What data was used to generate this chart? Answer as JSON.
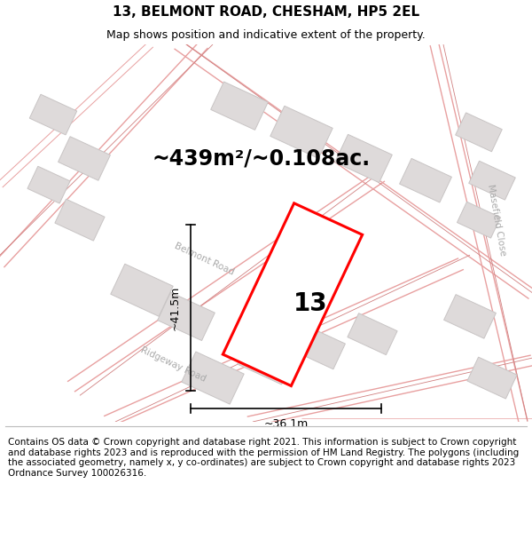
{
  "title": "13, BELMONT ROAD, CHESHAM, HP5 2EL",
  "subtitle": "Map shows position and indicative extent of the property.",
  "footer": "Contains OS data © Crown copyright and database right 2021. This information is subject to Crown copyright and database rights 2023 and is reproduced with the permission of HM Land Registry. The polygons (including the associated geometry, namely x, y co-ordinates) are subject to Crown copyright and database rights 2023 Ordnance Survey 100026316.",
  "area_label": "~439m²/~0.108ac.",
  "number_label": "13",
  "dim_width": "~36.1m",
  "dim_height": "~41.5m",
  "road_label_belmont": "Belmont Road",
  "road_label_ridgeway": "Ridgeway Road",
  "road_label_masefield": "Masefield Close",
  "map_bg": "#eeecec",
  "building_fill": "#dedada",
  "building_edge": "#c8c4c4",
  "road_line_color": "#e8a0a0",
  "road_line_color2": "#d08080",
  "plot_color": "#ff0000",
  "title_fontsize": 11,
  "subtitle_fontsize": 9,
  "footer_fontsize": 7.5,
  "area_fontsize": 17,
  "number_fontsize": 20
}
